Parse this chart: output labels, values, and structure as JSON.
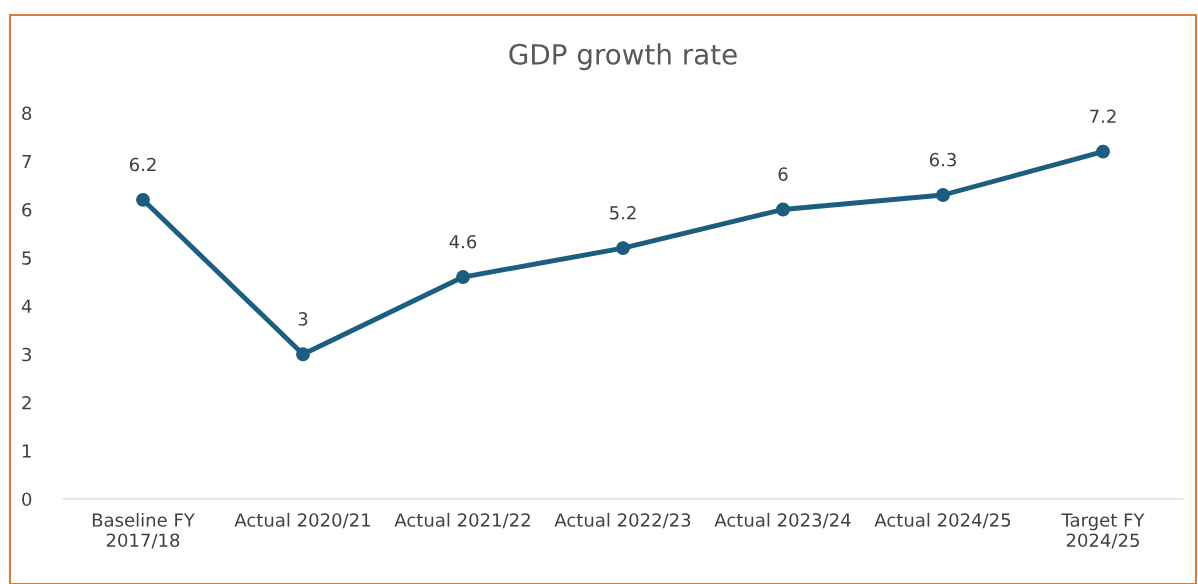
{
  "chart_data": {
    "type": "line",
    "title": "GDP growth rate",
    "categories": [
      "Baseline FY\n2017/18",
      "Actual 2020/21",
      "Actual 2021/22",
      "Actual 2022/23",
      "Actual 2023/24",
      "Actual 2024/25",
      "Target FY\n2024/25"
    ],
    "series": [
      {
        "color": "#1b5e7f",
        "values": [
          6.2,
          3,
          4.6,
          5.2,
          6,
          6.3,
          7.2
        ]
      }
    ],
    "ylim": [
      0,
      8
    ],
    "yticks": [
      0,
      1,
      2,
      3,
      4,
      5,
      6,
      7,
      8
    ],
    "grid": false,
    "legend": false,
    "marker": "circle",
    "line_style": "solid",
    "data_labels": true
  }
}
